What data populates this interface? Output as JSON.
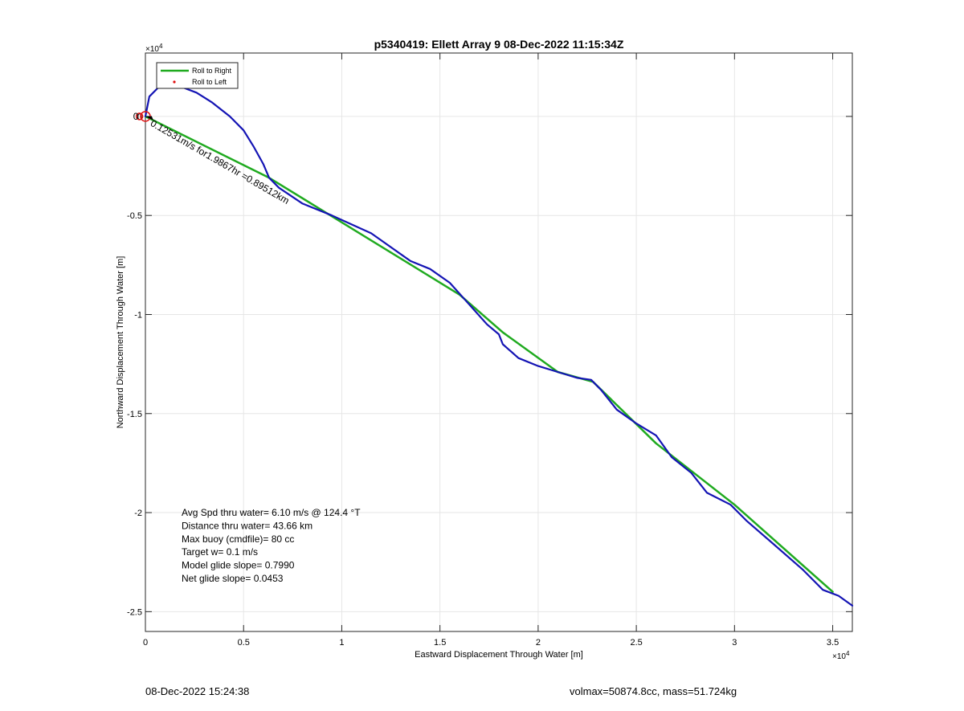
{
  "footer": {
    "left": "08-Dec-2022 15:24:38",
    "right": "volmax=50874.8cc, mass=51.724kg"
  },
  "chart_data": {
    "type": "line",
    "title": "p5340419: Ellett Array 9 08-Dec-2022 11:15:34Z",
    "xlabel": "Eastward Displacement Through Water [m]",
    "ylabel": "Northward Displacement Through Water [m]",
    "xlim": [
      0,
      36000
    ],
    "ylim": [
      -26000,
      3200
    ],
    "x_ticks": [
      0,
      5000,
      10000,
      15000,
      20000,
      25000,
      30000,
      35000
    ],
    "x_tick_labels": [
      "0",
      "0.5",
      "1",
      "1.5",
      "2",
      "2.5",
      "3",
      "3.5"
    ],
    "y_ticks": [
      0,
      -5000,
      -10000,
      -15000,
      -20000,
      -25000
    ],
    "y_tick_labels": [
      "0",
      "-0.5",
      "-1",
      "-1.5",
      "-2",
      "-2.5"
    ],
    "x_exponent": "×10",
    "x_exponent_power": "4",
    "y_exponent": "×10",
    "y_exponent_power": "4",
    "grid": true,
    "legend_position": "top-left",
    "legend": [
      {
        "label": "Roll to Right",
        "color": "#1faa1f",
        "style": "line"
      },
      {
        "label": "Roll to Left",
        "color": "#e01010",
        "style": "dot"
      }
    ],
    "series": [
      {
        "name": "Roll to Right",
        "color": "#1faa1f",
        "points": [
          [
            0,
            0
          ],
          [
            6300,
            -3100
          ],
          [
            16000,
            -9000
          ],
          [
            18200,
            -10900
          ],
          [
            21000,
            -12900
          ],
          [
            22800,
            -13400
          ],
          [
            26000,
            -16500
          ],
          [
            30000,
            -19600
          ],
          [
            35000,
            -24000
          ]
        ]
      },
      {
        "name": "track",
        "color": "#1414b4",
        "points": [
          [
            0,
            0
          ],
          [
            200,
            1000
          ],
          [
            700,
            1500
          ],
          [
            1200,
            1600
          ],
          [
            1800,
            1500
          ],
          [
            2600,
            1200
          ],
          [
            3400,
            700
          ],
          [
            4300,
            0
          ],
          [
            5000,
            -700
          ],
          [
            5500,
            -1500
          ],
          [
            6000,
            -2400
          ],
          [
            6300,
            -3100
          ],
          [
            6800,
            -3600
          ],
          [
            8000,
            -4400
          ],
          [
            9500,
            -5000
          ],
          [
            11500,
            -5900
          ],
          [
            13500,
            -7300
          ],
          [
            14500,
            -7700
          ],
          [
            15500,
            -8400
          ],
          [
            16500,
            -9500
          ],
          [
            17400,
            -10500
          ],
          [
            18000,
            -11000
          ],
          [
            18200,
            -11500
          ],
          [
            19000,
            -12200
          ],
          [
            20000,
            -12600
          ],
          [
            21000,
            -12900
          ],
          [
            22000,
            -13200
          ],
          [
            22700,
            -13300
          ],
          [
            23200,
            -13800
          ],
          [
            24000,
            -14800
          ],
          [
            25000,
            -15500
          ],
          [
            26000,
            -16100
          ],
          [
            26800,
            -17200
          ],
          [
            27800,
            -18000
          ],
          [
            28600,
            -19000
          ],
          [
            29800,
            -19600
          ],
          [
            30600,
            -20400
          ],
          [
            32000,
            -21600
          ],
          [
            33500,
            -22900
          ],
          [
            34500,
            -23900
          ],
          [
            35300,
            -24200
          ],
          [
            36000,
            -24700
          ]
        ]
      }
    ],
    "markers": [
      {
        "shape": "circle",
        "color": "#e01010",
        "x": 0,
        "y": 0,
        "size": 6
      },
      {
        "shape": "circle",
        "color": "#e01010",
        "x": -300,
        "y": 0,
        "size": 4
      }
    ],
    "annotations": [
      {
        "text": "0.12531m/s for1.9867hr =0.89512km",
        "x": 300,
        "y": -300,
        "angle": 30
      },
      {
        "text": "0",
        "x": -350,
        "y": 0,
        "angle": 0
      }
    ],
    "info_text": [
      "Avg Spd thru water=  6.10 m/s @ 124.4 °T",
      "Distance thru water= 43.66 km",
      "Max buoy (cmdfile)= 80 cc",
      "Target w= 0.1 m/s",
      "Model glide slope= 0.7990",
      "Net glide slope= 0.0453"
    ]
  }
}
